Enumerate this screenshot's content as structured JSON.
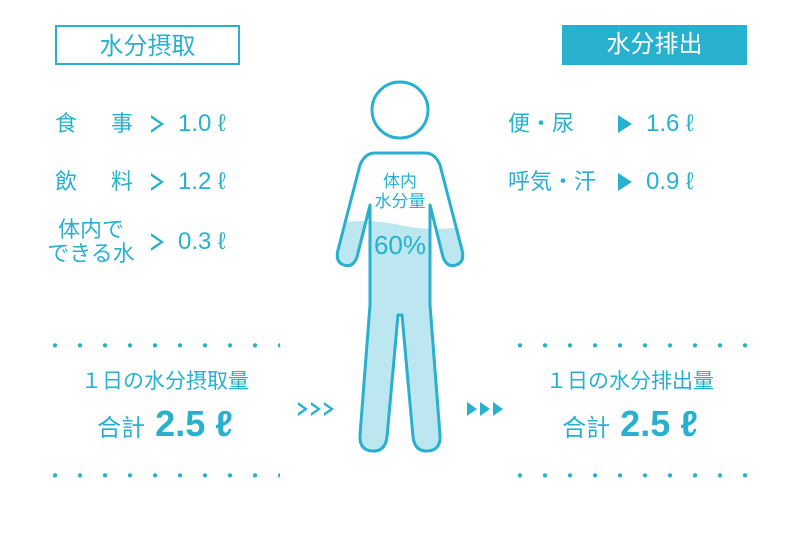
{
  "colors": {
    "primary": "#28b0cf",
    "fill": "#bde7f0",
    "bg": "#ffffff"
  },
  "headers": {
    "intake": "水分摂取",
    "output": "水分排出"
  },
  "intake": {
    "rows": [
      {
        "label": "食　事",
        "value": "1.0 ℓ"
      },
      {
        "label": "飲　料",
        "value": "1.2 ℓ"
      },
      {
        "label": "体内で\nできる水",
        "value": "0.3 ℓ"
      }
    ],
    "total_title": "１日の水分摂取量",
    "total_label": "合計",
    "total_value": "2.5 ℓ"
  },
  "output": {
    "rows": [
      {
        "label": "便・尿",
        "value": "1.6 ℓ"
      },
      {
        "label": "呼気・汗",
        "value": "0.9 ℓ"
      }
    ],
    "total_title": "１日の水分排出量",
    "total_label": "合計",
    "total_value": "2.5 ℓ"
  },
  "figure": {
    "body_label": "体内\n水分量",
    "percent": "60%",
    "stroke_width": 3
  },
  "style": {
    "header_fontsize": 24,
    "row_label_fontsize": 22,
    "row_value_fontsize": 24,
    "total_title_fontsize": 21,
    "total_value_fontsize": 36,
    "figure_label_fontsize": 17,
    "figure_percent_fontsize": 26
  }
}
